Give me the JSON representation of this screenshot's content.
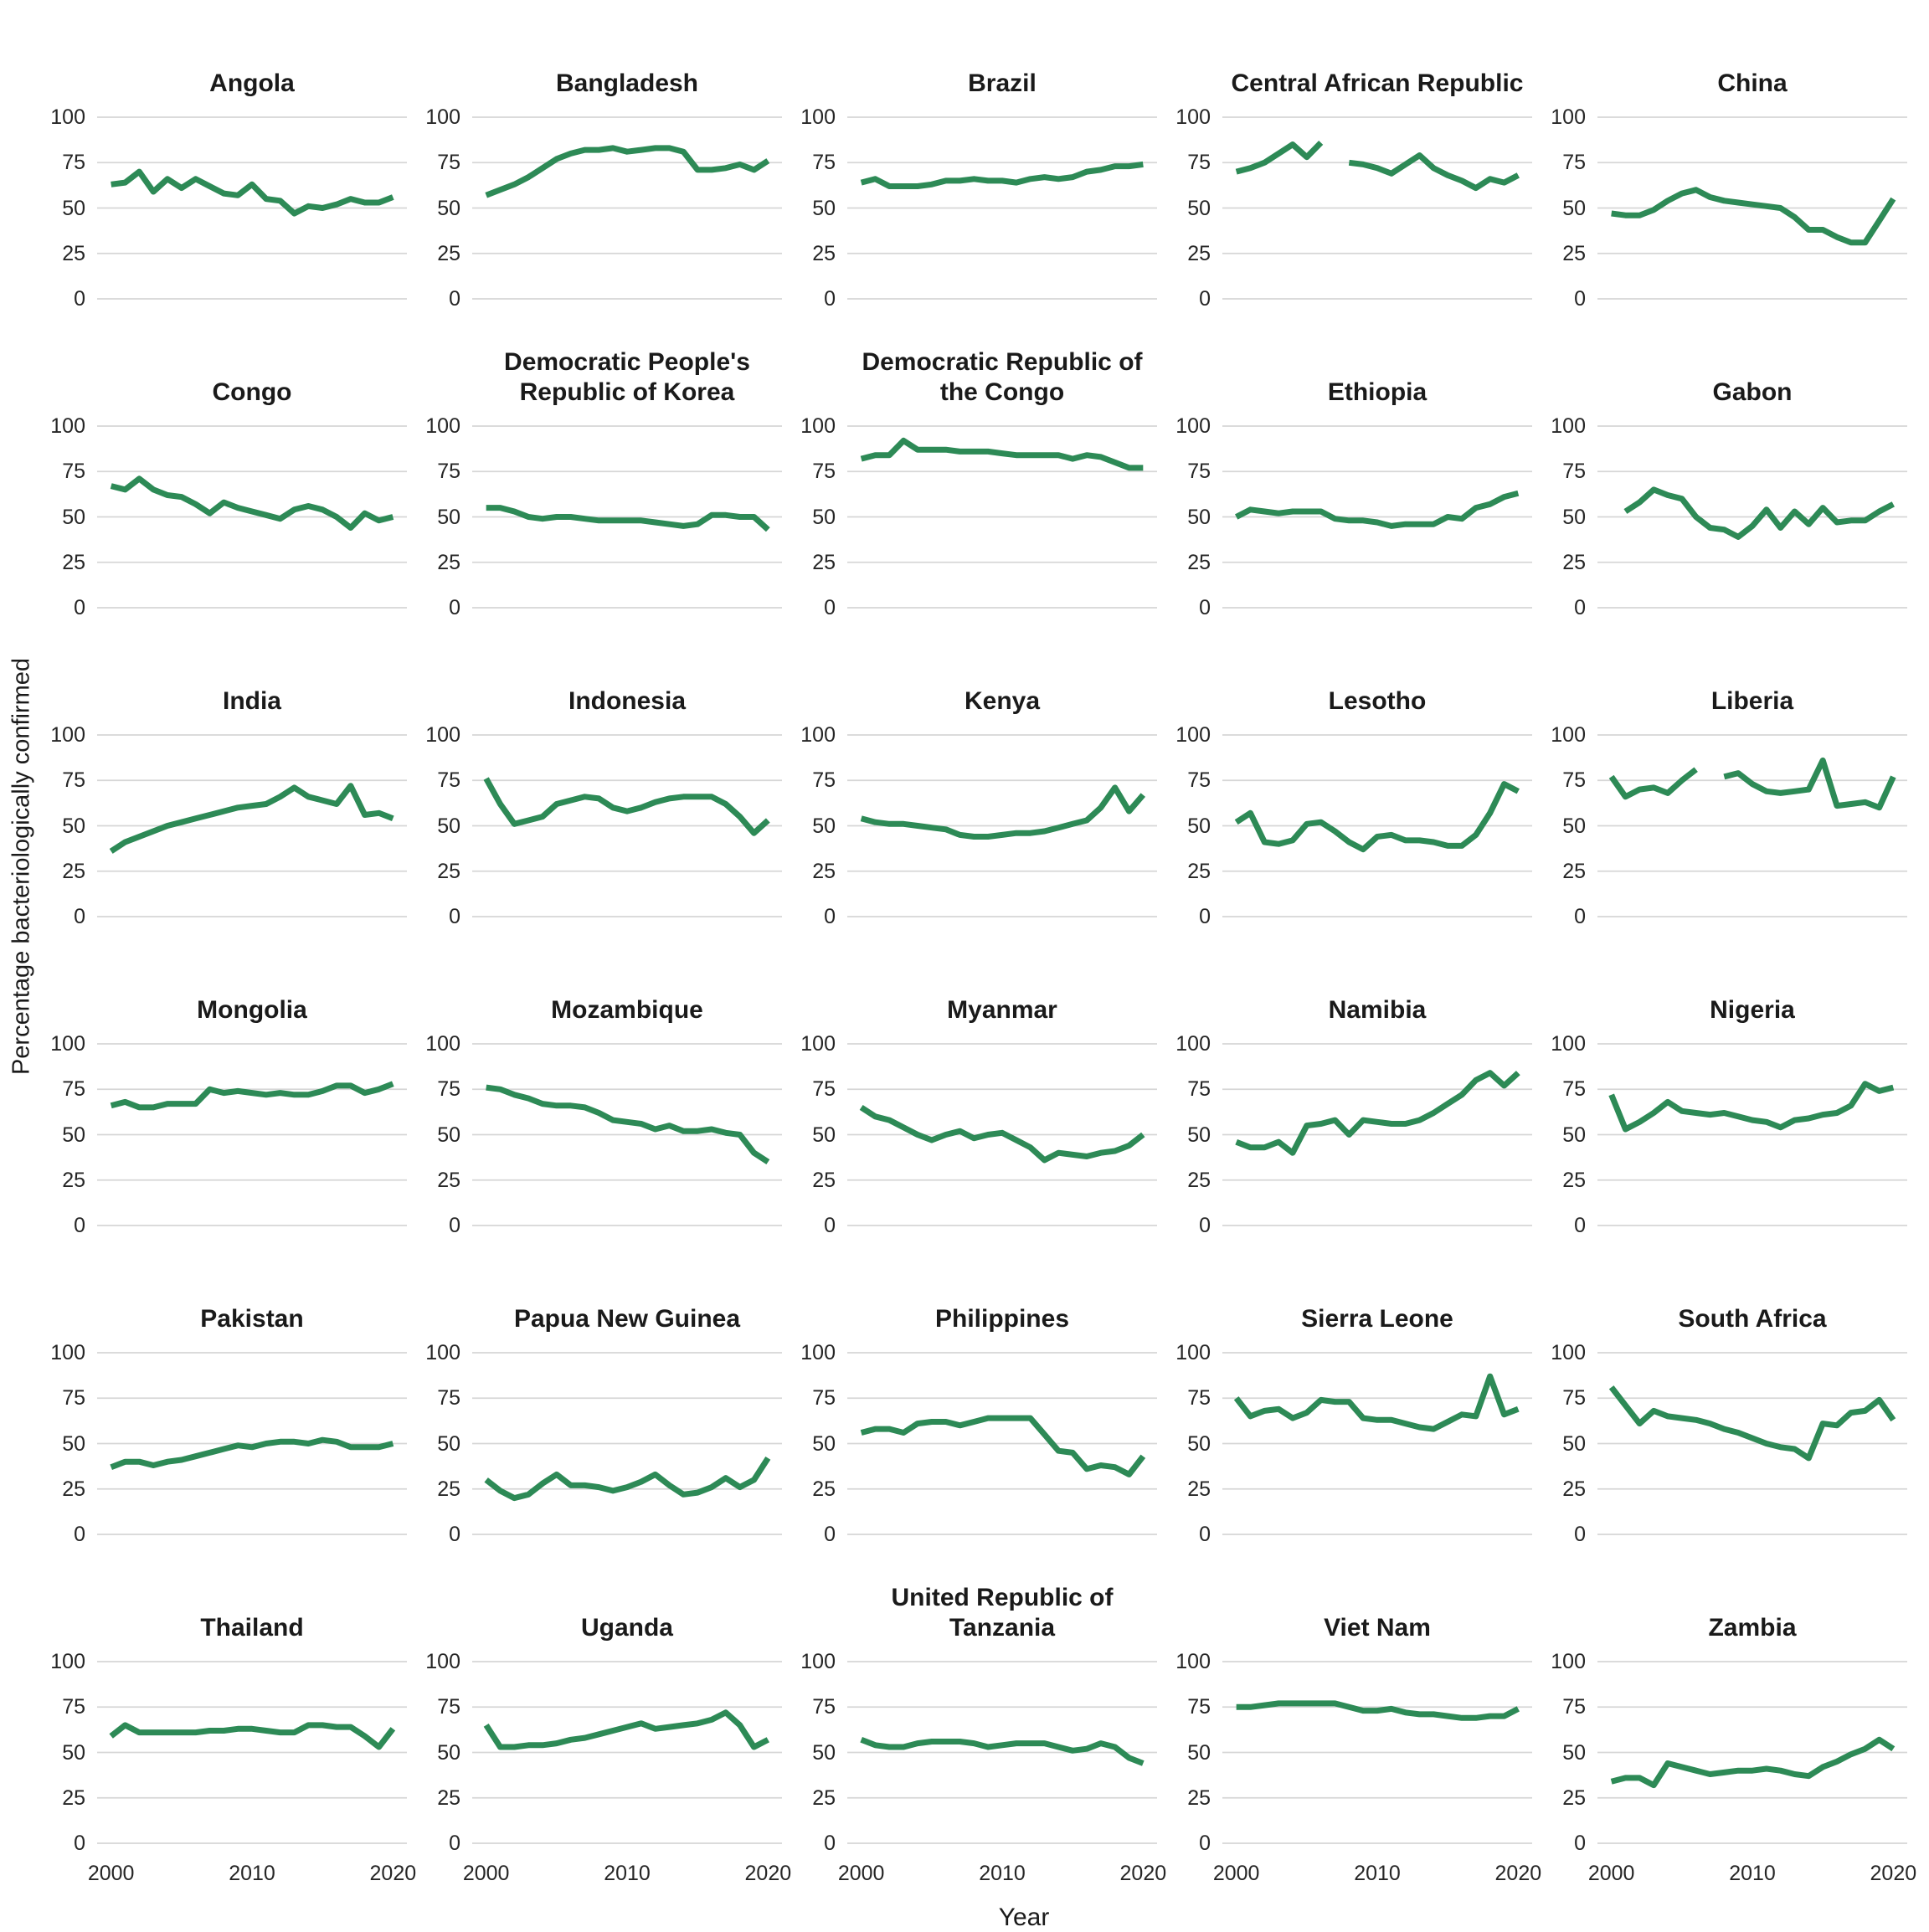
{
  "y_axis_label": "Percentage bacteriologically confirmed",
  "x_axis_label": "Year",
  "chart_data": {
    "type": "line",
    "x_label": "Year",
    "y_label": "Percentage bacteriologically confirmed",
    "x": [
      2000,
      2001,
      2002,
      2003,
      2004,
      2005,
      2006,
      2007,
      2008,
      2009,
      2010,
      2011,
      2012,
      2013,
      2014,
      2015,
      2016,
      2017,
      2018,
      2019,
      2020
    ],
    "x_ticks": [
      2000,
      2010,
      2020
    ],
    "y_ticks": [
      0,
      25,
      50,
      75,
      100
    ],
    "ylim": [
      0,
      100
    ],
    "grid": "horizontal-only",
    "legend": "none",
    "line_color": "#2d8a56",
    "gridline_color": "#d6d6d6",
    "facets": [
      {
        "title": "Angola",
        "values": [
          63,
          64,
          70,
          59,
          66,
          61,
          66,
          62,
          58,
          57,
          63,
          55,
          54,
          47,
          51,
          50,
          52,
          55,
          53,
          53,
          56
        ]
      },
      {
        "title": "Bangladesh",
        "values": [
          57,
          60,
          63,
          67,
          72,
          77,
          80,
          82,
          82,
          83,
          81,
          82,
          83,
          83,
          81,
          71,
          71,
          72,
          74,
          71,
          76
        ]
      },
      {
        "title": "Brazil",
        "values": [
          64,
          66,
          62,
          62,
          62,
          63,
          65,
          65,
          66,
          65,
          65,
          64,
          66,
          67,
          66,
          67,
          70,
          71,
          73,
          73,
          74
        ]
      },
      {
        "title": "Central African Republic",
        "values": [
          70,
          72,
          75,
          80,
          85,
          78,
          86,
          null,
          75,
          74,
          72,
          69,
          74,
          79,
          72,
          68,
          65,
          61,
          66,
          64,
          68
        ]
      },
      {
        "title": "China",
        "values": [
          47,
          46,
          46,
          49,
          54,
          58,
          60,
          56,
          54,
          53,
          52,
          51,
          50,
          45,
          38,
          38,
          34,
          31,
          31,
          43,
          55
        ]
      },
      {
        "title": "Congo",
        "values": [
          67,
          65,
          71,
          65,
          62,
          61,
          57,
          52,
          58,
          55,
          53,
          51,
          49,
          54,
          56,
          54,
          50,
          44,
          52,
          48,
          50
        ]
      },
      {
        "title": "Democratic People's Republic of Korea",
        "values": [
          55,
          55,
          53,
          50,
          49,
          50,
          50,
          49,
          48,
          48,
          48,
          48,
          47,
          46,
          45,
          46,
          51,
          51,
          50,
          50,
          43
        ]
      },
      {
        "title": "Democratic Republic of the Congo",
        "values": [
          82,
          84,
          84,
          92,
          87,
          87,
          87,
          86,
          86,
          86,
          85,
          84,
          84,
          84,
          84,
          82,
          84,
          83,
          80,
          77,
          77
        ]
      },
      {
        "title": "Ethiopia",
        "values": [
          50,
          54,
          53,
          52,
          53,
          53,
          53,
          49,
          48,
          48,
          47,
          45,
          46,
          46,
          46,
          50,
          49,
          55,
          57,
          61,
          63
        ]
      },
      {
        "title": "Gabon",
        "values": [
          null,
          53,
          58,
          65,
          62,
          60,
          50,
          44,
          43,
          39,
          45,
          54,
          44,
          53,
          46,
          55,
          47,
          48,
          48,
          53,
          57
        ]
      },
      {
        "title": "India",
        "values": [
          36,
          41,
          44,
          47,
          50,
          52,
          54,
          56,
          58,
          60,
          61,
          62,
          66,
          71,
          66,
          64,
          62,
          72,
          56,
          57,
          54
        ]
      },
      {
        "title": "Indonesia",
        "values": [
          76,
          62,
          51,
          53,
          55,
          62,
          64,
          66,
          65,
          60,
          58,
          60,
          63,
          65,
          66,
          66,
          66,
          62,
          55,
          46,
          53
        ]
      },
      {
        "title": "Kenya",
        "values": [
          54,
          52,
          51,
          51,
          50,
          49,
          48,
          45,
          44,
          44,
          45,
          46,
          46,
          47,
          49,
          51,
          53,
          60,
          71,
          58,
          67
        ]
      },
      {
        "title": "Lesotho",
        "values": [
          52,
          57,
          41,
          40,
          42,
          51,
          52,
          47,
          41,
          37,
          44,
          45,
          42,
          42,
          41,
          39,
          39,
          45,
          57,
          73,
          69
        ]
      },
      {
        "title": "Liberia",
        "values": [
          77,
          66,
          70,
          71,
          68,
          75,
          81,
          null,
          77,
          79,
          73,
          69,
          68,
          69,
          70,
          86,
          61,
          62,
          63,
          60,
          77
        ]
      },
      {
        "title": "Mongolia",
        "values": [
          66,
          68,
          65,
          65,
          67,
          67,
          67,
          75,
          73,
          74,
          73,
          72,
          73,
          72,
          72,
          74,
          77,
          77,
          73,
          75,
          78
        ]
      },
      {
        "title": "Mozambique",
        "values": [
          76,
          75,
          72,
          70,
          67,
          66,
          66,
          65,
          62,
          58,
          57,
          56,
          53,
          55,
          52,
          52,
          53,
          51,
          50,
          40,
          35
        ]
      },
      {
        "title": "Myanmar",
        "values": [
          65,
          60,
          58,
          54,
          50,
          47,
          50,
          52,
          48,
          50,
          51,
          47,
          43,
          36,
          40,
          39,
          38,
          40,
          41,
          44,
          50
        ]
      },
      {
        "title": "Namibia",
        "values": [
          46,
          43,
          43,
          46,
          40,
          55,
          56,
          58,
          50,
          58,
          57,
          56,
          56,
          58,
          62,
          67,
          72,
          80,
          84,
          77,
          84
        ]
      },
      {
        "title": "Nigeria",
        "values": [
          72,
          53,
          57,
          62,
          68,
          63,
          62,
          61,
          62,
          60,
          58,
          57,
          54,
          58,
          59,
          61,
          62,
          66,
          78,
          74,
          76
        ]
      },
      {
        "title": "Pakistan",
        "values": [
          37,
          40,
          40,
          38,
          40,
          41,
          43,
          45,
          47,
          49,
          48,
          50,
          51,
          51,
          50,
          52,
          51,
          48,
          48,
          48,
          50
        ]
      },
      {
        "title": "Papua New Guinea",
        "values": [
          30,
          24,
          20,
          22,
          28,
          33,
          27,
          27,
          26,
          24,
          26,
          29,
          33,
          27,
          22,
          23,
          26,
          31,
          26,
          30,
          42
        ]
      },
      {
        "title": "Philippines",
        "values": [
          56,
          58,
          58,
          56,
          61,
          62,
          62,
          60,
          62,
          64,
          64,
          64,
          64,
          55,
          46,
          45,
          36,
          38,
          37,
          33,
          43
        ]
      },
      {
        "title": "Sierra Leone",
        "values": [
          75,
          65,
          68,
          69,
          64,
          67,
          74,
          73,
          73,
          64,
          63,
          63,
          61,
          59,
          58,
          62,
          66,
          65,
          87,
          66,
          69
        ]
      },
      {
        "title": "South Africa",
        "values": [
          81,
          71,
          61,
          68,
          65,
          64,
          63,
          61,
          58,
          56,
          53,
          50,
          48,
          47,
          42,
          61,
          60,
          67,
          68,
          74,
          63
        ]
      },
      {
        "title": "Thailand",
        "values": [
          59,
          65,
          61,
          61,
          61,
          61,
          61,
          62,
          62,
          63,
          63,
          62,
          61,
          61,
          65,
          65,
          64,
          64,
          59,
          53,
          63
        ]
      },
      {
        "title": "Uganda",
        "values": [
          65,
          53,
          53,
          54,
          54,
          55,
          57,
          58,
          60,
          62,
          64,
          66,
          63,
          64,
          65,
          66,
          68,
          72,
          65,
          53,
          57
        ]
      },
      {
        "title": "United Republic of Tanzania",
        "values": [
          57,
          54,
          53,
          53,
          55,
          56,
          56,
          56,
          55,
          53,
          54,
          55,
          55,
          55,
          53,
          51,
          52,
          55,
          53,
          47,
          44
        ]
      },
      {
        "title": "Viet Nam",
        "values": [
          75,
          75,
          76,
          77,
          77,
          77,
          77,
          77,
          75,
          73,
          73,
          74,
          72,
          71,
          71,
          70,
          69,
          69,
          70,
          70,
          74
        ]
      },
      {
        "title": "Zambia",
        "values": [
          34,
          36,
          36,
          32,
          44,
          42,
          40,
          38,
          39,
          40,
          40,
          41,
          40,
          38,
          37,
          42,
          45,
          49,
          52,
          57,
          52
        ]
      }
    ]
  }
}
